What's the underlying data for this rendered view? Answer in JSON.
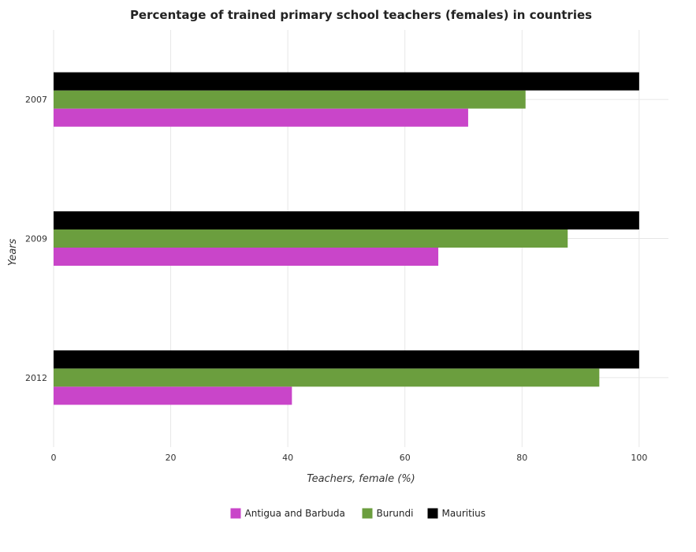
{
  "chart_data": {
    "type": "bar",
    "orientation": "horizontal",
    "title": "Percentage of trained primary school teachers (females) in countries",
    "xlabel": "Teachers, female (%)",
    "ylabel": "Years",
    "xlim": [
      0,
      105
    ],
    "xticks": [
      0,
      20,
      40,
      60,
      80,
      100
    ],
    "xtick_labels": [
      "0",
      "20",
      "40",
      "60",
      "80",
      "100"
    ],
    "categories": [
      "2007",
      "2009",
      "2012"
    ],
    "series": [
      {
        "name": "Antigua and Barbuda",
        "color": "#c945c9",
        "values": [
          70.8,
          65.7,
          40.7
        ]
      },
      {
        "name": "Burundi",
        "color": "#6b9e3e",
        "values": [
          80.6,
          87.8,
          93.2
        ]
      },
      {
        "name": "Mauritius",
        "color": "#000000",
        "values": [
          100.0,
          100.0,
          100.0
        ]
      }
    ],
    "grid": true,
    "legend": "bottom-center"
  }
}
